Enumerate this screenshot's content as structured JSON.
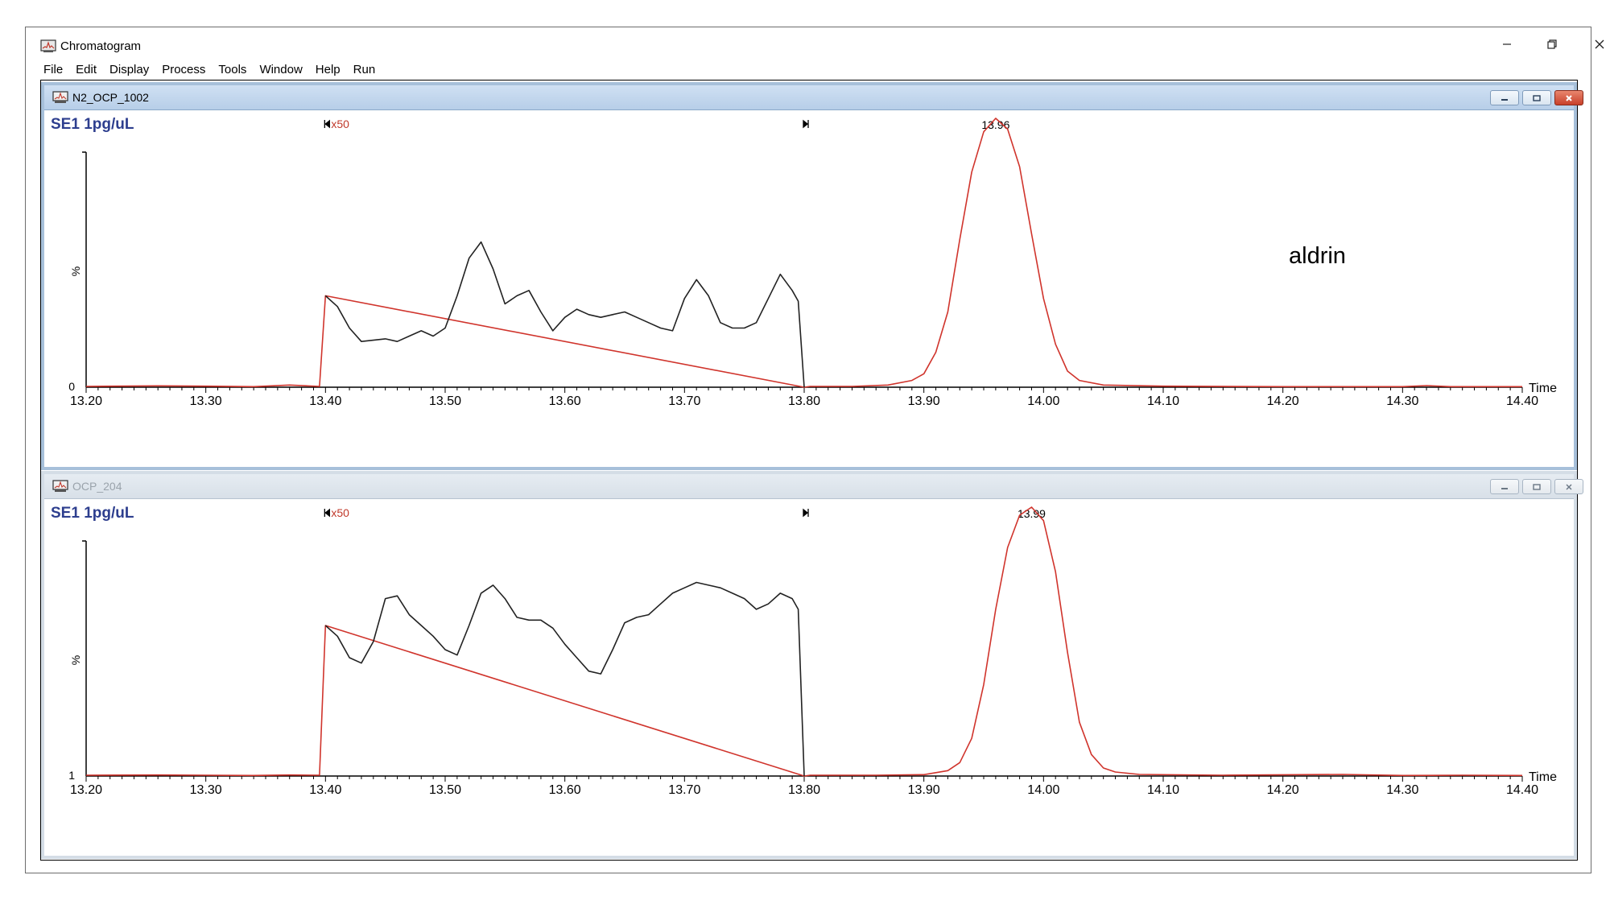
{
  "window": {
    "title": "Chromatogram"
  },
  "menu": [
    "File",
    "Edit",
    "Display",
    "Process",
    "Tools",
    "Window",
    "Help",
    "Run"
  ],
  "colors": {
    "trace_black": "#222222",
    "trace_red": "#d0342c",
    "label_blue": "#2d3e8e",
    "marker_red": "#c0392b"
  },
  "chart_data": [
    {
      "type": "line",
      "window_title": "N2_OCP_1002",
      "title": "SE1 1pg/uL",
      "xlabel": "Time",
      "ylabel": "%",
      "y_bottom_label": "0",
      "xlim": [
        13.2,
        14.4
      ],
      "ylim": [
        0,
        100
      ],
      "xticks": [
        "13.20",
        "13.30",
        "13.40",
        "13.50",
        "13.60",
        "13.70",
        "13.80",
        "13.90",
        "14.00",
        "14.10",
        "14.20",
        "14.30",
        "14.40"
      ],
      "annotations": {
        "magnification": "x50",
        "range_start": 13.4,
        "range_end": 13.8,
        "peak_label": "13.96",
        "peak_x": 13.96,
        "compound": "aldrin"
      },
      "series": [
        {
          "color": "#d0342c",
          "x": [
            13.2,
            13.26,
            13.3,
            13.34,
            13.37,
            13.395,
            13.4,
            13.8,
            13.805,
            13.84,
            13.87,
            13.89,
            13.9,
            13.91,
            13.92,
            13.93,
            13.94,
            13.95,
            13.96,
            13.97,
            13.98,
            13.99,
            14.0,
            14.01,
            14.02,
            14.03,
            14.05,
            14.1,
            14.2,
            14.3,
            14.32,
            14.34,
            14.4
          ],
          "y": [
            0.3,
            0.5,
            0.4,
            0.2,
            0.8,
            0.3,
            34,
            0,
            0.3,
            0.3,
            0.8,
            2.5,
            5,
            13,
            28,
            55,
            80,
            95,
            100,
            96,
            82,
            57,
            33,
            16,
            6,
            2.5,
            0.8,
            0.4,
            0.2,
            0.2,
            0.6,
            0.2,
            0.2
          ]
        },
        {
          "color": "#222222",
          "x": [
            13.4,
            13.41,
            13.42,
            13.43,
            13.44,
            13.45,
            13.46,
            13.47,
            13.48,
            13.49,
            13.5,
            13.51,
            13.52,
            13.53,
            13.54,
            13.55,
            13.56,
            13.57,
            13.58,
            13.59,
            13.6,
            13.61,
            13.62,
            13.63,
            13.64,
            13.65,
            13.66,
            13.67,
            13.68,
            13.69,
            13.7,
            13.71,
            13.72,
            13.73,
            13.74,
            13.75,
            13.76,
            13.77,
            13.78,
            13.79,
            13.795,
            13.8
          ],
          "y": [
            34,
            30,
            22,
            17,
            17.5,
            18,
            17,
            19,
            21,
            19,
            22,
            34,
            48,
            54,
            44,
            31,
            34,
            36,
            28,
            21,
            26,
            29,
            27,
            26,
            27,
            28,
            26,
            24,
            22,
            21,
            33,
            40,
            34,
            24,
            22,
            22,
            24,
            33,
            42,
            36,
            32,
            0
          ]
        }
      ]
    },
    {
      "type": "line",
      "window_title": "OCP_204",
      "title": "SE1 1pg/uL",
      "xlabel": "Time",
      "ylabel": "%",
      "y_bottom_label": "1",
      "xlim": [
        13.2,
        14.4
      ],
      "ylim": [
        0,
        100
      ],
      "xticks": [
        "13.20",
        "13.30",
        "13.40",
        "13.50",
        "13.60",
        "13.70",
        "13.80",
        "13.90",
        "14.00",
        "14.10",
        "14.20",
        "14.30",
        "14.40"
      ],
      "annotations": {
        "magnification": "x50",
        "range_start": 13.4,
        "range_end": 13.8,
        "peak_label": "13.99",
        "peak_x": 13.99
      },
      "series": [
        {
          "color": "#d0342c",
          "x": [
            13.2,
            13.26,
            13.3,
            13.34,
            13.37,
            13.395,
            13.4,
            13.8,
            13.805,
            13.86,
            13.9,
            13.92,
            13.93,
            13.94,
            13.95,
            13.96,
            13.97,
            13.98,
            13.99,
            14.0,
            14.01,
            14.02,
            14.03,
            14.04,
            14.05,
            14.06,
            14.08,
            14.15,
            14.25,
            14.3,
            14.35,
            14.4
          ],
          "y": [
            0.3,
            0.4,
            0.3,
            0.2,
            0.4,
            0.3,
            56,
            0,
            0.3,
            0.3,
            0.5,
            2,
            5,
            14,
            34,
            62,
            85,
            97,
            100,
            95,
            76,
            46,
            20,
            8,
            3,
            1.5,
            0.6,
            0.3,
            0.6,
            0.2,
            0.3,
            0.2
          ]
        },
        {
          "color": "#222222",
          "x": [
            13.4,
            13.41,
            13.42,
            13.43,
            13.44,
            13.45,
            13.46,
            13.47,
            13.48,
            13.49,
            13.5,
            13.51,
            13.52,
            13.53,
            13.54,
            13.55,
            13.56,
            13.57,
            13.58,
            13.59,
            13.6,
            13.61,
            13.62,
            13.63,
            13.64,
            13.65,
            13.66,
            13.67,
            13.68,
            13.69,
            13.7,
            13.71,
            13.72,
            13.73,
            13.74,
            13.75,
            13.76,
            13.77,
            13.78,
            13.79,
            13.795,
            13.8
          ],
          "y": [
            56,
            52,
            44,
            42,
            50,
            66,
            67,
            60,
            56,
            52,
            47,
            45,
            56,
            68,
            71,
            66,
            59,
            58,
            58,
            55,
            49,
            44,
            39,
            38,
            47,
            57,
            59,
            60,
            64,
            68,
            70,
            72,
            71,
            70,
            68,
            66,
            62,
            64,
            68,
            66,
            62,
            0
          ]
        }
      ]
    }
  ]
}
